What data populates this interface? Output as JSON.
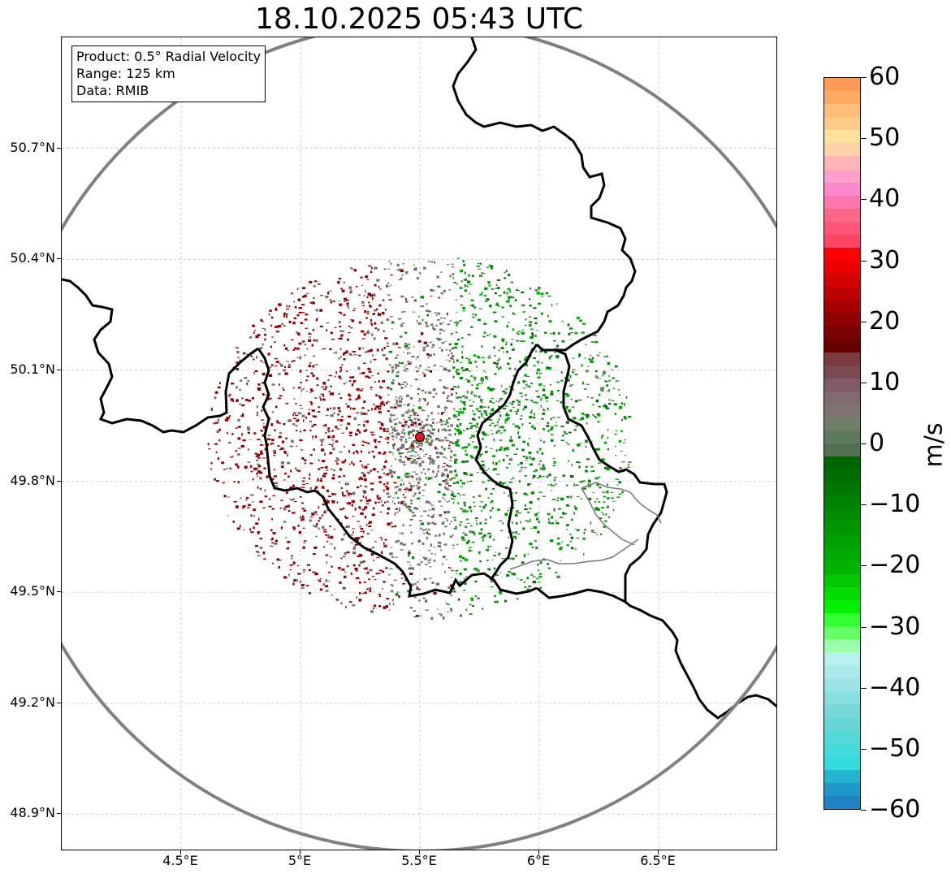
{
  "title": "18.10.2025 05:43 UTC",
  "info_box": {
    "product": "Product: 0.5° Radial Velocity",
    "range": "Range: 125 km",
    "data": "Data: RMIB"
  },
  "latitude_ticks": [
    "50.7°N",
    "50.4°N",
    "50.1°N",
    "49.8°N",
    "49.5°N",
    "49.2°N",
    "48.9°N"
  ],
  "latitude_values": [
    50.7,
    50.4,
    50.1,
    49.8,
    49.5,
    49.2,
    48.9
  ],
  "longitude_ticks": [
    "4.5°E",
    "5°E",
    "5.5°E",
    "6°E",
    "6.5°E"
  ],
  "longitude_values": [
    4.5,
    5.0,
    5.5,
    6.0,
    6.5
  ],
  "map_extent": {
    "lon_min": 4.0,
    "lon_max": 7.0,
    "lat_min": 48.8,
    "lat_max": 51.0
  },
  "radar_site": {
    "lon": 5.5,
    "lat": 49.92,
    "color": "#e8141e"
  },
  "range_ring_color": "#808080",
  "colorbar": {
    "unit": "m/s",
    "min": -60,
    "max": 60,
    "tick_labels": [
      "60",
      "50",
      "40",
      "30",
      "20",
      "10",
      "0",
      "−10",
      "−20",
      "−30",
      "−40",
      "−50",
      "−60"
    ],
    "tick_values": [
      60,
      50,
      40,
      30,
      20,
      10,
      0,
      -10,
      -20,
      -30,
      -40,
      -50,
      -60
    ],
    "colors_top_to_bottom": [
      "#ff9a55",
      "#ffab66",
      "#ffbd77",
      "#ffcc88",
      "#ffe099",
      "#ffd2a8",
      "#ffb5b5",
      "#ffa0cc",
      "#ff88cc",
      "#ff77aa",
      "#ff6688",
      "#ff5577",
      "#ff4466",
      "#ff0000",
      "#ea0000",
      "#d40000",
      "#bd0000",
      "#a60000",
      "#8e0000",
      "#780000",
      "#680000",
      "#7a3a40",
      "#7a4a52",
      "#7e5a66",
      "#806a72",
      "#807470",
      "#6e806a",
      "#5e7a5c",
      "#547052",
      "#006400",
      "#006e00",
      "#007800",
      "#008200",
      "#008c00",
      "#009600",
      "#00a000",
      "#00aa00",
      "#00b400",
      "#00c800",
      "#00dc00",
      "#00f000",
      "#33ff33",
      "#66ff66",
      "#99ffaa",
      "#b9f0f0",
      "#aaeaea",
      "#99e4e4",
      "#88dede",
      "#77d8d8",
      "#66d6d6",
      "#55d8d8",
      "#44dada",
      "#33dcdc",
      "#22b4d0",
      "#2196c9",
      "#1f82c2"
    ]
  },
  "echo_palette": {
    "outbound_strong": "#8b0000",
    "outbound_mid": "#a00000",
    "near_zero": "#806a72",
    "near_zero_green": "#6e806a",
    "inbound_mid": "#008c00",
    "inbound_strong": "#00aa00",
    "inbound_dark": "#006400"
  }
}
